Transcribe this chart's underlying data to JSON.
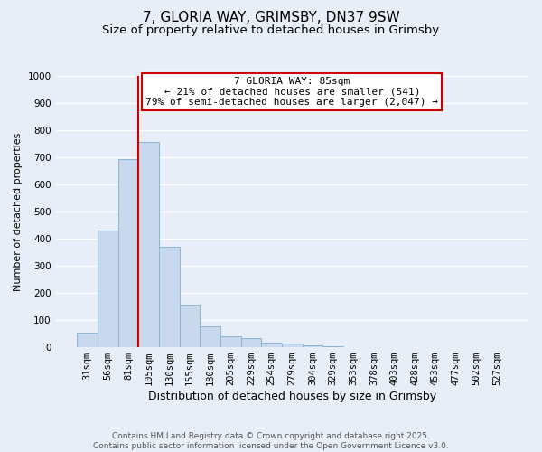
{
  "title": "7, GLORIA WAY, GRIMSBY, DN37 9SW",
  "subtitle": "Size of property relative to detached houses in Grimsby",
  "xlabel": "Distribution of detached houses by size in Grimsby",
  "ylabel": "Number of detached properties",
  "bar_labels": [
    "31sqm",
    "56sqm",
    "81sqm",
    "105sqm",
    "130sqm",
    "155sqm",
    "180sqm",
    "205sqm",
    "229sqm",
    "254sqm",
    "279sqm",
    "304sqm",
    "329sqm",
    "353sqm",
    "378sqm",
    "403sqm",
    "428sqm",
    "453sqm",
    "477sqm",
    "502sqm",
    "527sqm"
  ],
  "bar_values": [
    52,
    430,
    693,
    757,
    370,
    157,
    76,
    40,
    35,
    18,
    12,
    8,
    2,
    1,
    0,
    0,
    0,
    0,
    0,
    0,
    0
  ],
  "bar_color": "#c9d9ed",
  "bar_edge_color": "#8ab4d4",
  "background_color": "#e8eef8",
  "grid_color": "#ffffff",
  "vline_x_index": 2.5,
  "vline_color": "#cc0000",
  "annotation_line1": "7 GLORIA WAY: 85sqm",
  "annotation_line2": "← 21% of detached houses are smaller (541)",
  "annotation_line3": "79% of semi-detached houses are larger (2,047) →",
  "annotation_box_color": "#cc0000",
  "ylim": [
    0,
    1000
  ],
  "yticks": [
    0,
    100,
    200,
    300,
    400,
    500,
    600,
    700,
    800,
    900,
    1000
  ],
  "footer_line1": "Contains HM Land Registry data © Crown copyright and database right 2025.",
  "footer_line2": "Contains public sector information licensed under the Open Government Licence v3.0.",
  "title_fontsize": 11,
  "subtitle_fontsize": 9.5,
  "xlabel_fontsize": 9,
  "ylabel_fontsize": 8,
  "tick_fontsize": 7.5,
  "annotation_fontsize": 8,
  "footer_fontsize": 6.5
}
